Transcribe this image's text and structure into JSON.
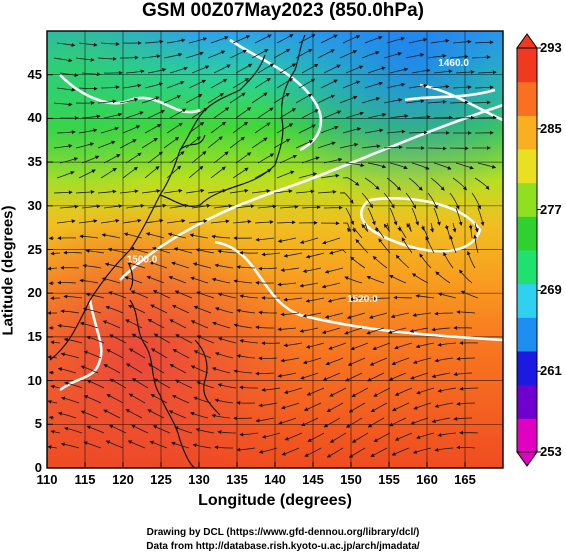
{
  "title": "GSM 00Z07May2023 (850.0hPa)",
  "x_axis": {
    "label": "Longitude (degrees)",
    "ticks": [
      "110",
      "115",
      "120",
      "125",
      "130",
      "135",
      "140",
      "145",
      "150",
      "155",
      "160",
      "165"
    ],
    "values": [
      110,
      115,
      120,
      125,
      130,
      135,
      140,
      145,
      150,
      155,
      160,
      165
    ],
    "range": [
      110,
      170
    ]
  },
  "y_axis": {
    "label": "Latitude  (degrees)",
    "ticks": [
      "0",
      "5",
      "10",
      "15",
      "20",
      "25",
      "30",
      "35",
      "40",
      "45"
    ],
    "values": [
      0,
      5,
      10,
      15,
      20,
      25,
      30,
      35,
      40,
      45
    ],
    "range": [
      0,
      50
    ]
  },
  "colorbar": {
    "ticks": [
      "293",
      "285",
      "277",
      "269",
      "261",
      "253"
    ],
    "values": [
      293,
      285,
      277,
      269,
      261,
      253
    ],
    "range": [
      253,
      293
    ],
    "colors": [
      "#e000c0",
      "#7000d0",
      "#1a1ae0",
      "#1d8ff0",
      "#30d0f0",
      "#20e070",
      "#30d030",
      "#8ee020",
      "#e8e020",
      "#f8b020",
      "#f87020",
      "#f03a20"
    ]
  },
  "contour_labels": [
    {
      "text": "1520.0",
      "lon": 151.5,
      "lat": 19.0
    },
    {
      "text": "1460.0",
      "lon": 163.5,
      "lat": 46.0
    },
    {
      "text": "1500.0",
      "lon": 122.5,
      "lat": 23.5
    }
  ],
  "footer": {
    "line1": "Drawing by DCL (https://www.gfd-dennou.org/library/dcl/)",
    "line2": "Data from http://database.rish.kyoto-u.ac.jp/arch/jmadata/"
  }
}
